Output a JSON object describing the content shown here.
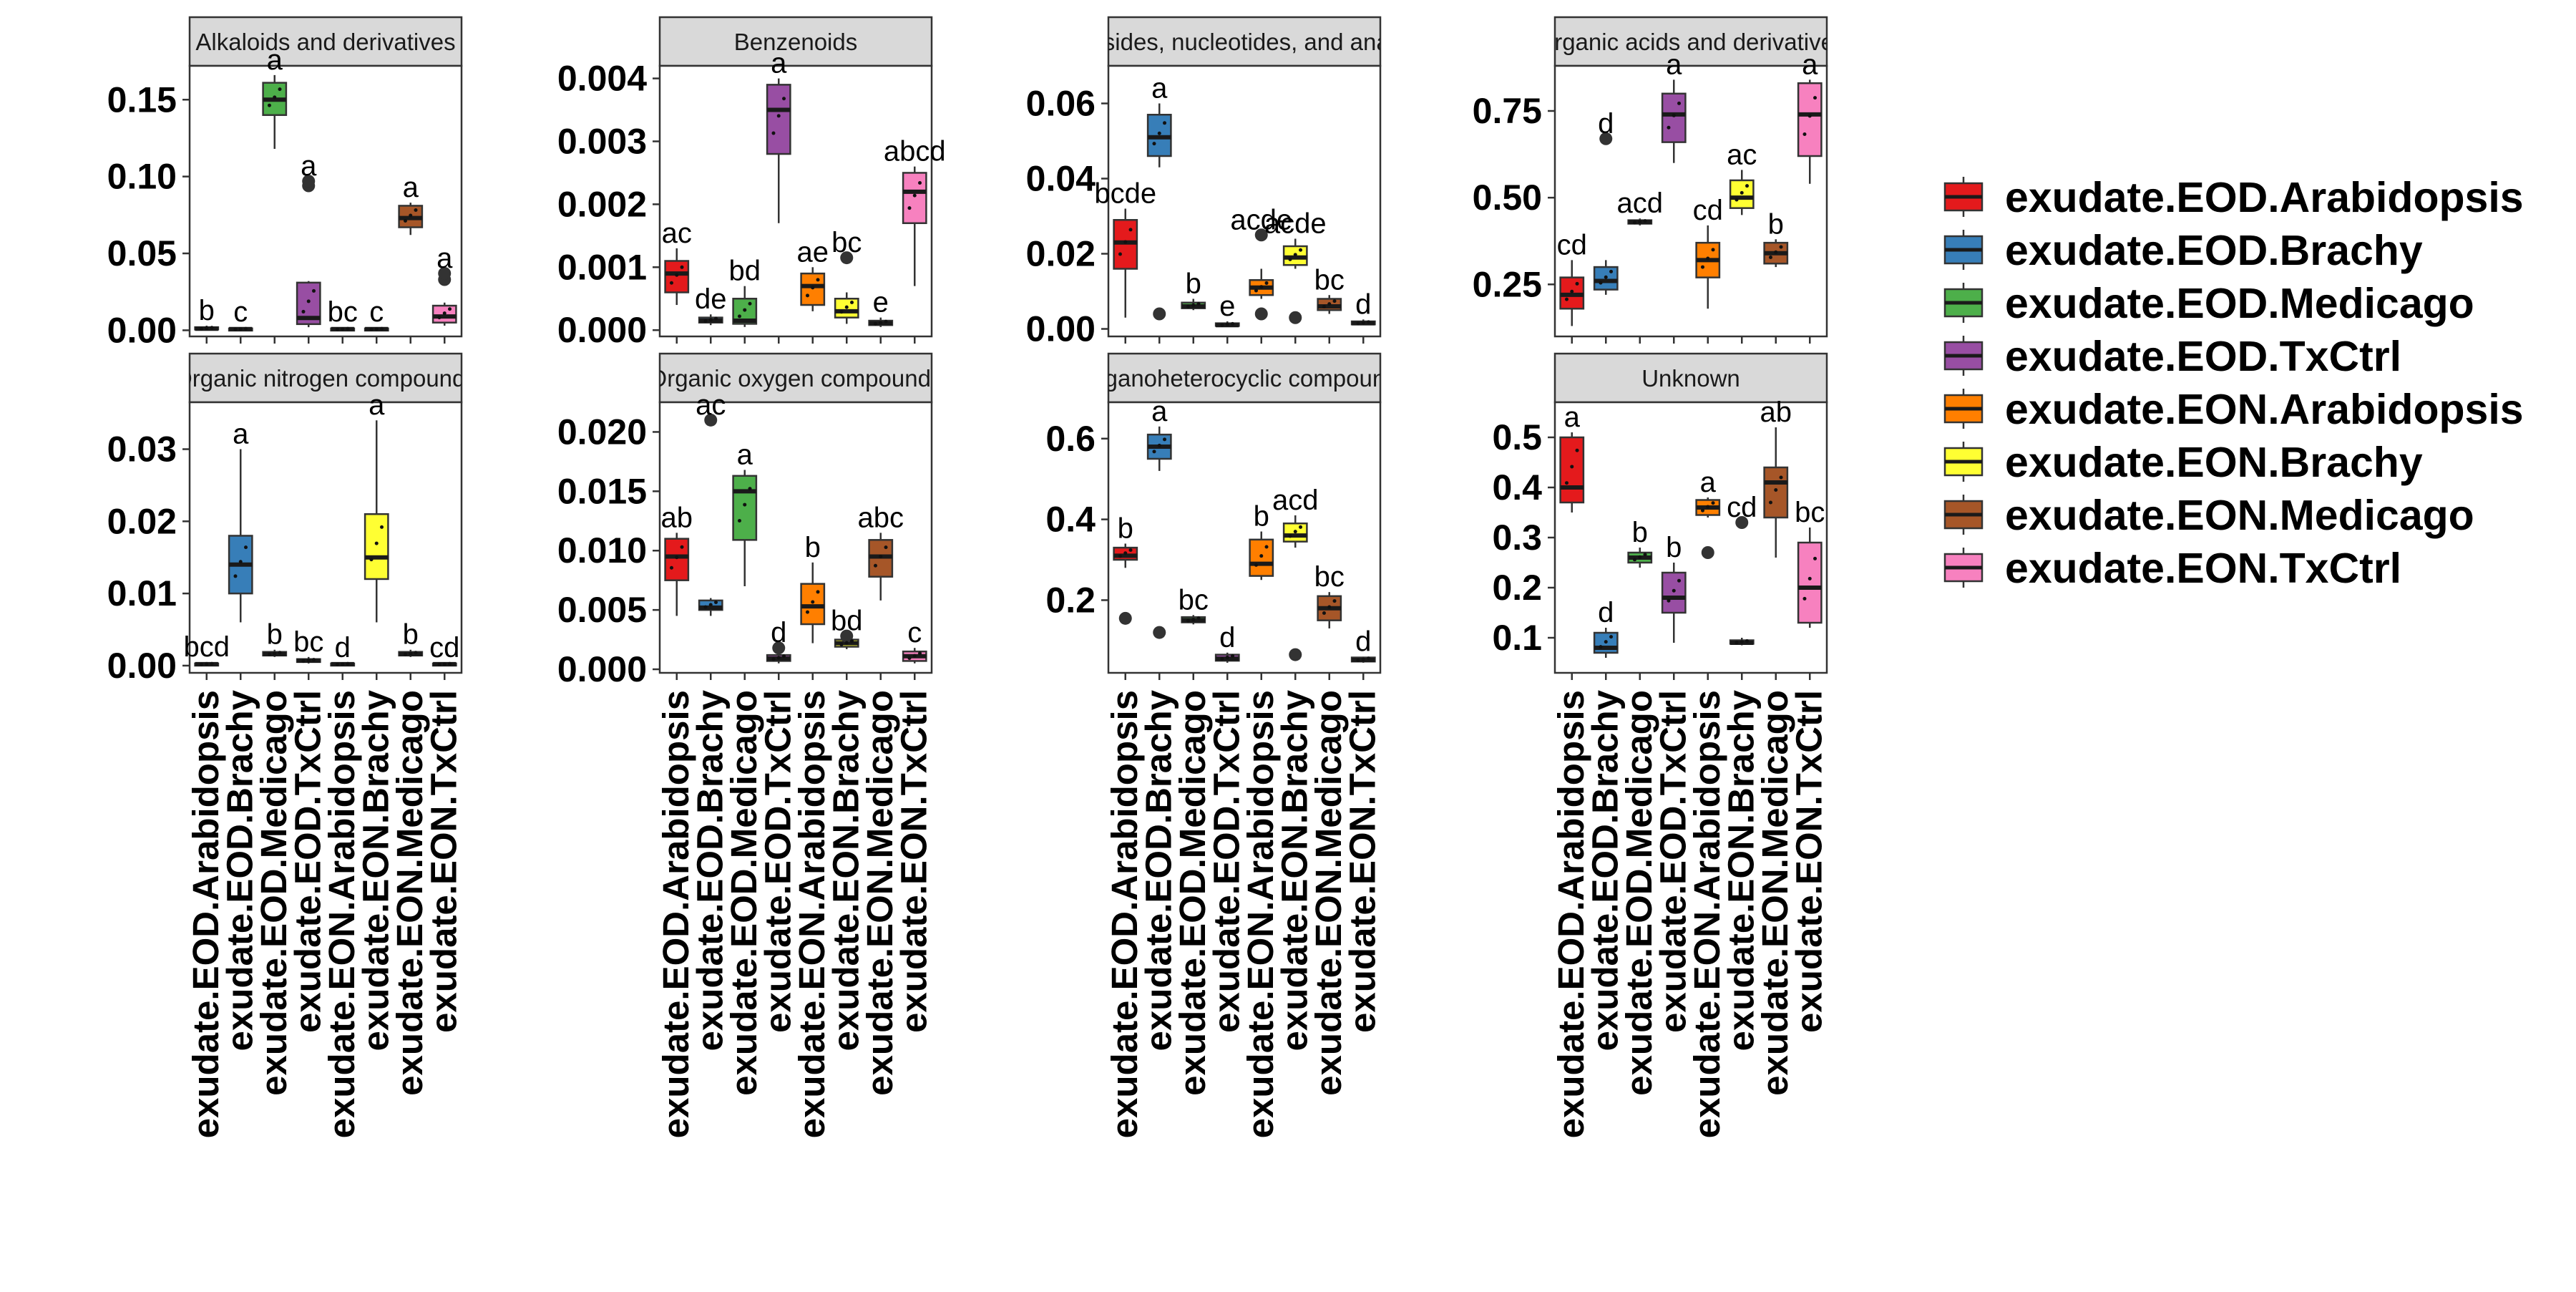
{
  "chart_data": {
    "type": "boxplot",
    "facet_layout": "4 columns x 2 rows, free y scales",
    "legend_position": "right",
    "grid": false,
    "groups": [
      "exudate.EOD.Arabidopsis",
      "exudate.EOD.Brachy",
      "exudate.EOD.Medicago",
      "exudate.EOD.TxCtrl",
      "exudate.EON.Arabidopsis",
      "exudate.EON.Brachy",
      "exudate.EON.Medicago",
      "exudate.EON.TxCtrl"
    ],
    "colors": [
      "#E41A1C",
      "#377EB8",
      "#4DAF4A",
      "#984EA3",
      "#FF7F00",
      "#FFFF33",
      "#A65628",
      "#F781BF"
    ],
    "panels": [
      {
        "title": "Alkaloids and derivatives",
        "ylim": [
          -0.004,
          0.172
        ],
        "yticks": [
          0.0,
          0.05,
          0.1,
          0.15
        ],
        "ytick_labels": [
          "0.00",
          "0.05",
          "0.10",
          "0.15"
        ],
        "boxes": [
          {
            "min": 0.0,
            "q1": 0.0005,
            "median": 0.001,
            "q3": 0.002,
            "max": 0.003,
            "outliers": []
          },
          {
            "min": 0.0,
            "q1": 0.0003,
            "median": 0.0008,
            "q3": 0.0012,
            "max": 0.002,
            "outliers": []
          },
          {
            "min": 0.118,
            "q1": 0.14,
            "median": 0.15,
            "q3": 0.161,
            "max": 0.166,
            "outliers": []
          },
          {
            "min": 0.002,
            "q1": 0.004,
            "median": 0.008,
            "q3": 0.031,
            "max": 0.032,
            "outliers": [
              0.094,
              0.097
            ]
          },
          {
            "min": 0.0,
            "q1": 0.0003,
            "median": 0.0008,
            "q3": 0.0012,
            "max": 0.002,
            "outliers": []
          },
          {
            "min": 0.0,
            "q1": 0.0003,
            "median": 0.0008,
            "q3": 0.0012,
            "max": 0.002,
            "outliers": []
          },
          {
            "min": 0.062,
            "q1": 0.067,
            "median": 0.073,
            "q3": 0.081,
            "max": 0.083,
            "outliers": []
          },
          {
            "min": 0.003,
            "q1": 0.005,
            "median": 0.009,
            "q3": 0.016,
            "max": 0.018,
            "outliers": [
              0.033,
              0.037
            ]
          }
        ],
        "letters": [
          "b",
          "c",
          "a",
          "a",
          "bc",
          "c",
          "a",
          "a"
        ]
      },
      {
        "title": "Benzenoids",
        "ylim": [
          -0.0001,
          0.0042
        ],
        "yticks": [
          0.0,
          0.001,
          0.002,
          0.003,
          0.004
        ],
        "ytick_labels": [
          "0.000",
          "0.001",
          "0.002",
          "0.003",
          "0.004"
        ],
        "boxes": [
          {
            "min": 0.0004,
            "q1": 0.0006,
            "median": 0.0009,
            "q3": 0.0011,
            "max": 0.0013,
            "outliers": []
          },
          {
            "min": 8e-05,
            "q1": 0.00012,
            "median": 0.00015,
            "q3": 0.0002,
            "max": 0.00025,
            "outliers": []
          },
          {
            "min": 5e-05,
            "q1": 0.0001,
            "median": 0.00015,
            "q3": 0.0005,
            "max": 0.0007,
            "outliers": []
          },
          {
            "min": 0.0017,
            "q1": 0.0028,
            "median": 0.0035,
            "q3": 0.0039,
            "max": 0.004,
            "outliers": []
          },
          {
            "min": 0.0003,
            "q1": 0.0004,
            "median": 0.0007,
            "q3": 0.0009,
            "max": 0.001,
            "outliers": []
          },
          {
            "min": 0.0001,
            "q1": 0.0002,
            "median": 0.0003,
            "q3": 0.0005,
            "max": 0.0006,
            "outliers": [
              0.00115
            ]
          },
          {
            "min": 5e-05,
            "q1": 8e-05,
            "median": 0.00011,
            "q3": 0.00015,
            "max": 0.0002,
            "outliers": []
          },
          {
            "min": 0.0007,
            "q1": 0.0017,
            "median": 0.0022,
            "q3": 0.0025,
            "max": 0.0026,
            "outliers": []
          }
        ],
        "letters": [
          "ac",
          "de",
          "bd",
          "a",
          "ae",
          "bc",
          "e",
          "abcd"
        ]
      },
      {
        "title": "Nucleosides, nucleotides, and analogues",
        "title_visible": "osides, nucleotides, and anal",
        "ylim": [
          -0.002,
          0.07
        ],
        "yticks": [
          0.0,
          0.02,
          0.04,
          0.06
        ],
        "ytick_labels": [
          "0.00",
          "0.02",
          "0.04",
          "0.06"
        ],
        "boxes": [
          {
            "min": 0.003,
            "q1": 0.016,
            "median": 0.023,
            "q3": 0.029,
            "max": 0.032,
            "outliers": []
          },
          {
            "min": 0.043,
            "q1": 0.046,
            "median": 0.051,
            "q3": 0.057,
            "max": 0.06,
            "outliers": [
              0.004
            ]
          },
          {
            "min": 0.005,
            "q1": 0.0055,
            "median": 0.006,
            "q3": 0.007,
            "max": 0.008,
            "outliers": []
          },
          {
            "min": 0.0005,
            "q1": 0.0008,
            "median": 0.001,
            "q3": 0.0015,
            "max": 0.002,
            "outliers": []
          },
          {
            "min": 0.008,
            "q1": 0.009,
            "median": 0.011,
            "q3": 0.013,
            "max": 0.016,
            "outliers": [
              0.025,
              0.004
            ]
          },
          {
            "min": 0.016,
            "q1": 0.017,
            "median": 0.019,
            "q3": 0.022,
            "max": 0.024,
            "outliers": [
              0.003
            ]
          },
          {
            "min": 0.004,
            "q1": 0.005,
            "median": 0.006,
            "q3": 0.008,
            "max": 0.009,
            "outliers": []
          },
          {
            "min": 0.001,
            "q1": 0.0012,
            "median": 0.0015,
            "q3": 0.002,
            "max": 0.0025,
            "outliers": []
          }
        ],
        "letters": [
          "bcde",
          "a",
          "b",
          "e",
          "acde",
          "acde",
          "bc",
          "d"
        ]
      },
      {
        "title": "Organic acids and derivatives",
        "title_visible": "Organic acids and derivatives",
        "ylim": [
          0.1,
          0.88
        ],
        "yticks": [
          0.25,
          0.5,
          0.75
        ],
        "ytick_labels": [
          "0.25",
          "0.50",
          "0.75"
        ],
        "boxes": [
          {
            "min": 0.13,
            "q1": 0.18,
            "median": 0.22,
            "q3": 0.27,
            "max": 0.32,
            "outliers": []
          },
          {
            "min": 0.22,
            "q1": 0.235,
            "median": 0.26,
            "q3": 0.3,
            "max": 0.32,
            "outliers": [
              0.67
            ]
          },
          {
            "min": 0.42,
            "q1": 0.425,
            "median": 0.43,
            "q3": 0.435,
            "max": 0.44,
            "outliers": []
          },
          {
            "min": 0.6,
            "q1": 0.66,
            "median": 0.74,
            "q3": 0.8,
            "max": 0.84,
            "outliers": []
          },
          {
            "min": 0.18,
            "q1": 0.27,
            "median": 0.32,
            "q3": 0.37,
            "max": 0.42,
            "outliers": []
          },
          {
            "min": 0.45,
            "q1": 0.47,
            "median": 0.5,
            "q3": 0.55,
            "max": 0.58,
            "outliers": []
          },
          {
            "min": 0.3,
            "q1": 0.31,
            "median": 0.34,
            "q3": 0.37,
            "max": 0.38,
            "outliers": []
          },
          {
            "min": 0.54,
            "q1": 0.62,
            "median": 0.74,
            "q3": 0.83,
            "max": 0.84,
            "outliers": []
          }
        ],
        "letters": [
          "cd",
          "d",
          "acd",
          "a",
          "cd",
          "ac",
          "b",
          "a"
        ]
      },
      {
        "title": "Organic nitrogen compounds",
        "ylim": [
          -0.001,
          0.0365
        ],
        "yticks": [
          0.0,
          0.01,
          0.02,
          0.03
        ],
        "ytick_labels": [
          "0.00",
          "0.01",
          "0.02",
          "0.03"
        ],
        "boxes": [
          {
            "min": 0.0,
            "q1": 0.0001,
            "median": 0.0002,
            "q3": 0.0003,
            "max": 0.0005,
            "outliers": []
          },
          {
            "min": 0.006,
            "q1": 0.01,
            "median": 0.014,
            "q3": 0.018,
            "max": 0.03,
            "outliers": []
          },
          {
            "min": 0.0012,
            "q1": 0.0014,
            "median": 0.0016,
            "q3": 0.0019,
            "max": 0.0022,
            "outliers": []
          },
          {
            "min": 0.0003,
            "q1": 0.0005,
            "median": 0.0007,
            "q3": 0.0009,
            "max": 0.0012,
            "outliers": []
          },
          {
            "min": 0.0,
            "q1": 0.0001,
            "median": 0.0002,
            "q3": 0.0003,
            "max": 0.0004,
            "outliers": []
          },
          {
            "min": 0.006,
            "q1": 0.012,
            "median": 0.015,
            "q3": 0.021,
            "max": 0.034,
            "outliers": []
          },
          {
            "min": 0.0012,
            "q1": 0.0014,
            "median": 0.0016,
            "q3": 0.0019,
            "max": 0.0022,
            "outliers": []
          },
          {
            "min": 0.0,
            "q1": 0.0001,
            "median": 0.0002,
            "q3": 0.0003,
            "max": 0.0004,
            "outliers": []
          }
        ],
        "letters": [
          "bcd",
          "a",
          "b",
          "bc",
          "d",
          "a",
          "b",
          "cd"
        ]
      },
      {
        "title": "Organic oxygen compounds",
        "ylim": [
          -0.0003,
          0.0225
        ],
        "yticks": [
          0.0,
          0.005,
          0.01,
          0.015,
          0.02
        ],
        "ytick_labels": [
          "0.000",
          "0.005",
          "0.010",
          "0.015",
          "0.020"
        ],
        "boxes": [
          {
            "min": 0.0045,
            "q1": 0.0075,
            "median": 0.0095,
            "q3": 0.011,
            "max": 0.0115,
            "outliers": []
          },
          {
            "min": 0.0045,
            "q1": 0.005,
            "median": 0.0052,
            "q3": 0.0058,
            "max": 0.006,
            "outliers": [
              0.021
            ]
          },
          {
            "min": 0.007,
            "q1": 0.0109,
            "median": 0.015,
            "q3": 0.0163,
            "max": 0.0168,
            "outliers": []
          },
          {
            "min": 0.0005,
            "q1": 0.0007,
            "median": 0.0009,
            "q3": 0.0012,
            "max": 0.0015,
            "outliers": [
              0.0018
            ]
          },
          {
            "min": 0.0022,
            "q1": 0.0038,
            "median": 0.0053,
            "q3": 0.0072,
            "max": 0.009,
            "outliers": []
          },
          {
            "min": 0.0017,
            "q1": 0.0019,
            "median": 0.0022,
            "q3": 0.0025,
            "max": 0.0028,
            "outliers": [
              0.0028
            ]
          },
          {
            "min": 0.0058,
            "q1": 0.0078,
            "median": 0.0095,
            "q3": 0.0109,
            "max": 0.0115,
            "outliers": []
          },
          {
            "min": 0.0005,
            "q1": 0.0007,
            "median": 0.0011,
            "q3": 0.0015,
            "max": 0.0018,
            "outliers": []
          }
        ],
        "letters": [
          "ab",
          "ac",
          "a",
          "d",
          "b",
          "bd",
          "abc",
          "c"
        ]
      },
      {
        "title": "Organoheterocyclic compounds",
        "title_visible": "rganoheterocyclic compound",
        "ylim": [
          0.02,
          0.69
        ],
        "yticks": [
          0.2,
          0.4,
          0.6
        ],
        "ytick_labels": [
          "0.2",
          "0.4",
          "0.6"
        ],
        "boxes": [
          {
            "min": 0.28,
            "q1": 0.3,
            "median": 0.31,
            "q3": 0.33,
            "max": 0.34,
            "outliers": [
              0.155
            ]
          },
          {
            "min": 0.52,
            "q1": 0.55,
            "median": 0.58,
            "q3": 0.61,
            "max": 0.63,
            "outliers": [
              0.12
            ]
          },
          {
            "min": 0.14,
            "q1": 0.145,
            "median": 0.15,
            "q3": 0.158,
            "max": 0.163,
            "outliers": []
          },
          {
            "min": 0.045,
            "q1": 0.05,
            "median": 0.055,
            "q3": 0.065,
            "max": 0.07,
            "outliers": []
          },
          {
            "min": 0.25,
            "q1": 0.26,
            "median": 0.29,
            "q3": 0.35,
            "max": 0.37,
            "outliers": []
          },
          {
            "min": 0.33,
            "q1": 0.345,
            "median": 0.36,
            "q3": 0.39,
            "max": 0.41,
            "outliers": [
              0.065
            ]
          },
          {
            "min": 0.13,
            "q1": 0.15,
            "median": 0.18,
            "q3": 0.21,
            "max": 0.22,
            "outliers": []
          },
          {
            "min": 0.045,
            "q1": 0.048,
            "median": 0.052,
            "q3": 0.058,
            "max": 0.06,
            "outliers": []
          }
        ],
        "letters": [
          "b",
          "a",
          "bc",
          "d",
          "b",
          "acd",
          "bc",
          "d"
        ]
      },
      {
        "title": "Unknown",
        "ylim": [
          0.03,
          0.57
        ],
        "yticks": [
          0.1,
          0.2,
          0.3,
          0.4,
          0.5
        ],
        "ytick_labels": [
          "0.1",
          "0.2",
          "0.3",
          "0.4",
          "0.5"
        ],
        "boxes": [
          {
            "min": 0.35,
            "q1": 0.37,
            "median": 0.4,
            "q3": 0.5,
            "max": 0.51,
            "outliers": []
          },
          {
            "min": 0.06,
            "q1": 0.07,
            "median": 0.08,
            "q3": 0.11,
            "max": 0.12,
            "outliers": []
          },
          {
            "min": 0.24,
            "q1": 0.25,
            "median": 0.26,
            "q3": 0.27,
            "max": 0.28,
            "outliers": []
          },
          {
            "min": 0.09,
            "q1": 0.15,
            "median": 0.18,
            "q3": 0.23,
            "max": 0.25,
            "outliers": []
          },
          {
            "min": 0.34,
            "q1": 0.345,
            "median": 0.36,
            "q3": 0.375,
            "max": 0.38,
            "outliers": [
              0.27
            ]
          },
          {
            "min": 0.085,
            "q1": 0.088,
            "median": 0.09,
            "q3": 0.095,
            "max": 0.1,
            "outliers": [
              0.33
            ]
          },
          {
            "min": 0.26,
            "q1": 0.34,
            "median": 0.41,
            "q3": 0.44,
            "max": 0.52,
            "outliers": []
          },
          {
            "min": 0.12,
            "q1": 0.13,
            "median": 0.2,
            "q3": 0.29,
            "max": 0.32,
            "outliers": []
          }
        ],
        "letters": [
          "a",
          "d",
          "b",
          "b",
          "a",
          "cd",
          "ab",
          "bc"
        ]
      }
    ]
  }
}
